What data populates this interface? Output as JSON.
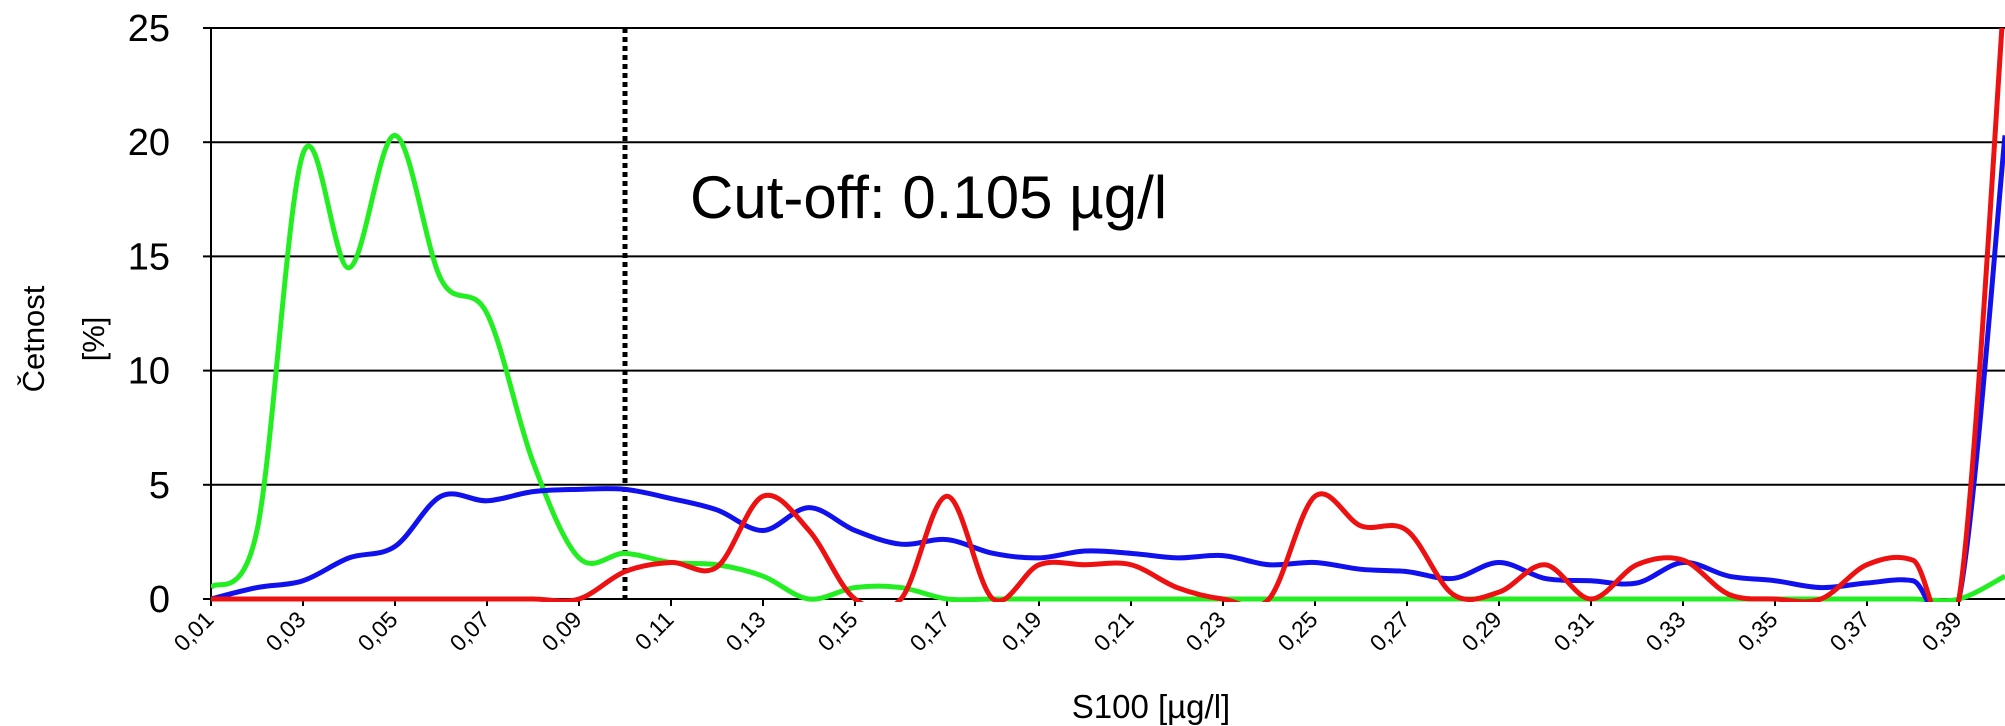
{
  "chart_data": {
    "type": "line",
    "x_label": "S100  [µg/l]",
    "y_label": "Četnost",
    "y_unit": "[%]",
    "annotation": "Cut-off: 0.105 µg/l",
    "vline": 0.1,
    "x": [
      0.01,
      0.02,
      0.03,
      0.04,
      0.05,
      0.06,
      0.07,
      0.08,
      0.09,
      0.1,
      0.11,
      0.12,
      0.13,
      0.14,
      0.15,
      0.16,
      0.17,
      0.18,
      0.19,
      0.2,
      0.21,
      0.22,
      0.23,
      0.24,
      0.25,
      0.26,
      0.27,
      0.28,
      0.29,
      0.3,
      0.31,
      0.32,
      0.33,
      0.34,
      0.35,
      0.36,
      0.37,
      0.38,
      0.39,
      0.4
    ],
    "series": [
      {
        "color": "#22ee22",
        "values": [
          0.5,
          3,
          19.5,
          14.5,
          20.3,
          14,
          12.5,
          6,
          1.8,
          2,
          1.6,
          1.5,
          1,
          0,
          0.5,
          0.5,
          0,
          0,
          0,
          0,
          0,
          0,
          0,
          0,
          0,
          0,
          0,
          0,
          0,
          0,
          0,
          0,
          0,
          0,
          0,
          0,
          0,
          0,
          0,
          1
        ]
      },
      {
        "color": "#1111ee",
        "values": [
          0,
          0.5,
          0.8,
          1.8,
          2.3,
          4.5,
          4.3,
          4.7,
          4.8,
          4.8,
          4.4,
          3.9,
          3.0,
          4.0,
          3.0,
          2.4,
          2.6,
          2.0,
          1.8,
          2.1,
          2.0,
          1.8,
          1.9,
          1.5,
          1.6,
          1.3,
          1.2,
          0.9,
          1.6,
          0.9,
          0.8,
          0.7,
          1.6,
          1.0,
          0.8,
          0.5,
          0.7,
          0.8,
          0,
          20.3
        ]
      },
      {
        "color": "#ee1111",
        "values": [
          0,
          0,
          0,
          0,
          0,
          0,
          0,
          0,
          0,
          1.2,
          1.6,
          1.4,
          4.5,
          3.0,
          0,
          0,
          4.5,
          0,
          1.5,
          1.5,
          1.5,
          0.5,
          0,
          0,
          4.5,
          3.2,
          3.0,
          0.2,
          0.3,
          1.5,
          0,
          1.5,
          1.7,
          0.2,
          0,
          0,
          1.5,
          1.7,
          0,
          27
        ]
      }
    ],
    "xlim": [
      0.01,
      0.4
    ],
    "xticks": [
      {
        "value": 0.01,
        "label": "0,01"
      },
      {
        "value": 0.03,
        "label": "0,03"
      },
      {
        "value": 0.05,
        "label": "0,05"
      },
      {
        "value": 0.07,
        "label": "0,07"
      },
      {
        "value": 0.09,
        "label": "0,09"
      },
      {
        "value": 0.11,
        "label": "0,11"
      },
      {
        "value": 0.13,
        "label": "0,13"
      },
      {
        "value": 0.15,
        "label": "0,15"
      },
      {
        "value": 0.17,
        "label": "0,17"
      },
      {
        "value": 0.19,
        "label": "0,19"
      },
      {
        "value": 0.21,
        "label": "0,21"
      },
      {
        "value": 0.23,
        "label": "0,23"
      },
      {
        "value": 0.25,
        "label": "0,25"
      },
      {
        "value": 0.27,
        "label": "0,27"
      },
      {
        "value": 0.29,
        "label": "0,29"
      },
      {
        "value": 0.31,
        "label": "0,31"
      },
      {
        "value": 0.33,
        "label": "0,33"
      },
      {
        "value": 0.35,
        "label": "0,35"
      },
      {
        "value": 0.37,
        "label": "0,37"
      },
      {
        "value": 0.39,
        "label": "0,39"
      }
    ],
    "ylim": [
      0,
      25
    ],
    "yticks": [
      0,
      5,
      10,
      15,
      20,
      25
    ],
    "grid": true
  }
}
